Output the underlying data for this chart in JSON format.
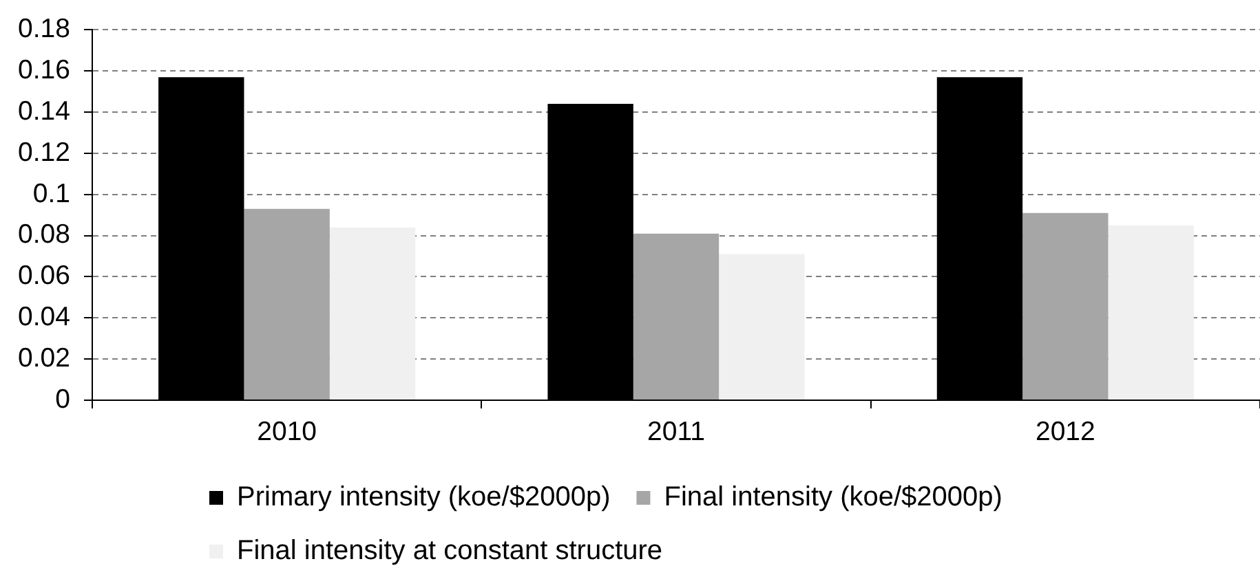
{
  "chart_data": {
    "type": "bar",
    "categories": [
      "2010",
      "2011",
      "2012"
    ],
    "series": [
      {
        "name": "Primary intensity (koe/$2000p)",
        "color": "#000000",
        "values": [
          0.157,
          0.144,
          0.157
        ]
      },
      {
        "name": "Final intensity (koe/$2000p)",
        "color": "#a6a6a6",
        "values": [
          0.093,
          0.081,
          0.091
        ]
      },
      {
        "name": "Final intensity at constant structure",
        "color": "#f0f0f0",
        "values": [
          0.084,
          0.071,
          0.085
        ]
      }
    ],
    "ylim": [
      0,
      0.18
    ],
    "yticks": [
      0,
      0.02,
      0.04,
      0.06,
      0.08,
      0.1,
      0.12,
      0.14,
      0.16,
      0.18
    ],
    "grid": "y",
    "legend": "bottom"
  }
}
